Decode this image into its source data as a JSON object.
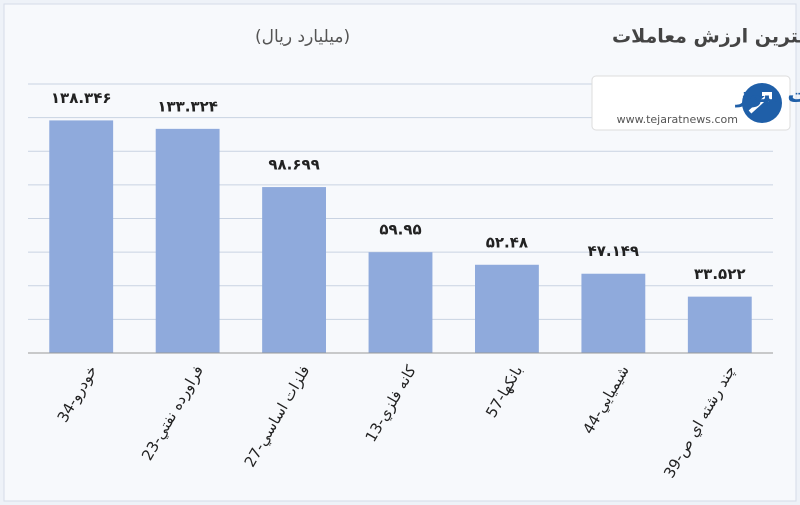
{
  "chart_data": {
    "type": "bar",
    "title": "صنایع بورسی با بیشترین ارزش معاملات",
    "subtitle": "(میلیارد ریال)",
    "categories": [
      "34-خودرو",
      "23-فراورده نفتي",
      "27-فلزات اساسي",
      "13-كانه فلزي",
      "57-بانكها",
      "44-شيميايي",
      "39-چند رشته اي ص"
    ],
    "values": [
      138.346,
      133.324,
      98.699,
      59.95,
      52.48,
      47.149,
      33.522
    ],
    "value_labels": [
      "۱۳۸.۳۴۶",
      "۱۳۳.۳۲۴",
      "۹۸.۶۹۹",
      "۵۹.۹۵",
      "۵۲.۴۸",
      "۴۷.۱۴۹",
      "۳۳.۵۲۲"
    ],
    "color": "#8faadc",
    "ylim": [
      0,
      160
    ],
    "yticks": [
      0,
      20,
      40,
      60,
      80,
      100,
      120,
      140,
      160
    ],
    "grid": true
  },
  "logo": {
    "name": "تجارت نیوز",
    "url": "www.tejaratnews.com"
  }
}
